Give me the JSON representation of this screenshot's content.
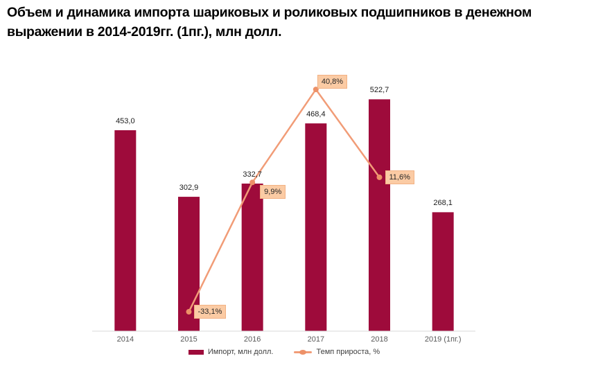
{
  "title": {
    "line1": "Объем и динамика импорта шариковых и роликовых подшипников в денежном",
    "line2": "выражении в 2014-2019гг. (1пг.), млн долл."
  },
  "colors": {
    "bar": "#9e0b3b",
    "line": "#f19c77",
    "marker": "#ed9168",
    "label_bg": "#fbcba4",
    "label_border": "#f2b183",
    "axis": "#d9d9d9",
    "axis_text": "#595959",
    "value_text": "#1a1a1a",
    "legend_text": "#3f3f3f"
  },
  "chart_data": {
    "type": "bar",
    "subtype": "bar-with-line-overlay",
    "title": "Объем и динамика импорта шариковых и роликовых подшипников в денежном выражении в 2014-2019гг. (1пг.), млн долл.",
    "categories": [
      "2014",
      "2015",
      "2016",
      "2017",
      "2018",
      "2019 (1пг.)"
    ],
    "series": [
      {
        "name": "Импорт, млн долл.",
        "type": "bar",
        "values": [
          453.0,
          302.9,
          332.7,
          468.4,
          522.7,
          268.1
        ],
        "labels": [
          "453,0",
          "302,9",
          "332,7",
          "468,4",
          "522,7",
          "268,1"
        ]
      },
      {
        "name": "Темп прироста, %",
        "type": "line",
        "values": [
          null,
          -33.1,
          9.9,
          40.8,
          11.6,
          null
        ],
        "labels": [
          null,
          "-33,1%",
          "9,9%",
          "40,8%",
          "11,6%",
          null
        ]
      }
    ],
    "xlabel": "",
    "ylabel": "",
    "ylim_bar": [
      0,
      540
    ],
    "ylim_line_pct": [
      -40,
      45
    ],
    "grid": false,
    "legend_position": "bottom"
  },
  "legend": {
    "bar_label": "Импорт, млн долл.",
    "line_label": "Темп прироста, %"
  }
}
